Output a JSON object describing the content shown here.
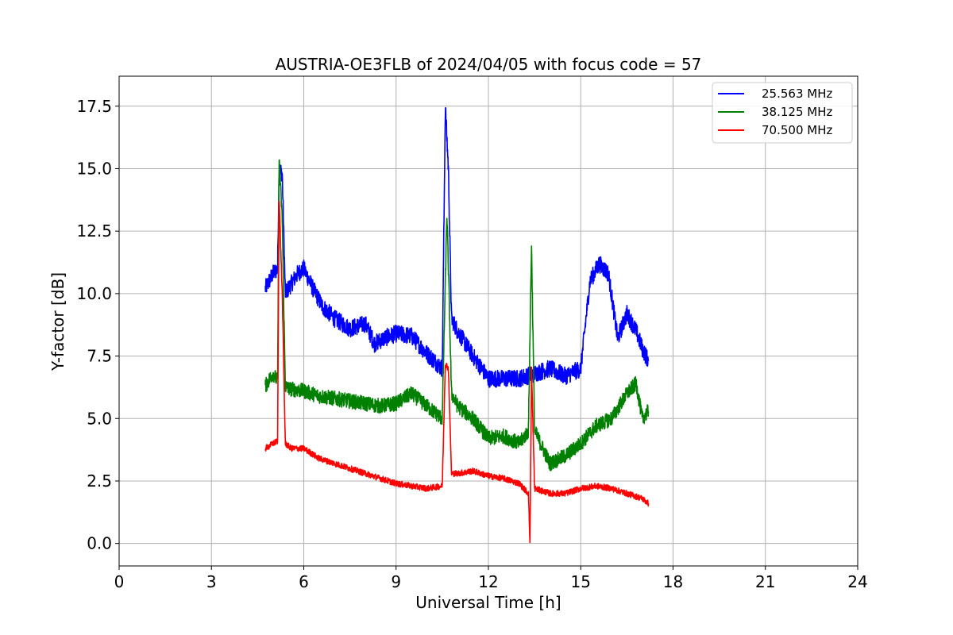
{
  "chart_data": {
    "type": "line",
    "title": "AUSTRIA-OE3FLB of 2024/04/05 with focus code = 57",
    "xlabel": "Universal Time [h]",
    "ylabel": "Y-factor [dB]",
    "xlim": [
      0,
      24
    ],
    "ylim": [
      -0.9,
      18.7
    ],
    "xticks": [
      0,
      3,
      6,
      9,
      12,
      15,
      18,
      21,
      24
    ],
    "xtick_labels": [
      "0",
      "3",
      "6",
      "9",
      "12",
      "15",
      "18",
      "21",
      "24"
    ],
    "yticks": [
      0,
      2.5,
      5,
      7.5,
      10,
      12.5,
      15,
      17.5
    ],
    "ytick_labels": [
      "0.0",
      "2.5",
      "5.0",
      "7.5",
      "10.0",
      "12.5",
      "15.0",
      "17.5"
    ],
    "grid": true,
    "legend_position": "top-right",
    "series": [
      {
        "name": "25.563 MHz",
        "color": "#0000ff",
        "noise": 0.35,
        "x": [
          4.75,
          5.0,
          5.15,
          5.2,
          5.3,
          5.4,
          5.5,
          5.8,
          6.0,
          6.3,
          6.6,
          7.0,
          7.5,
          8.0,
          8.3,
          8.6,
          9.0,
          9.5,
          10.0,
          10.5,
          10.6,
          10.7,
          10.8,
          11.0,
          11.5,
          12.0,
          12.5,
          13.0,
          13.5,
          14.0,
          14.5,
          15.0,
          15.3,
          15.6,
          15.9,
          16.2,
          16.5,
          16.8,
          17.0,
          17.2
        ],
        "y": [
          10.2,
          10.8,
          11.0,
          15.0,
          14.8,
          10.0,
          10.2,
          10.8,
          11.0,
          10.2,
          9.5,
          9.0,
          8.6,
          8.8,
          8.0,
          8.2,
          8.4,
          8.3,
          7.6,
          7.0,
          17.5,
          15.0,
          9.0,
          8.5,
          7.5,
          6.6,
          6.6,
          6.6,
          6.8,
          7.0,
          6.7,
          7.0,
          10.5,
          11.2,
          10.8,
          8.2,
          9.2,
          8.5,
          7.8,
          7.3
        ]
      },
      {
        "name": "38.125 MHz",
        "color": "#008000",
        "noise": 0.3,
        "x": [
          4.75,
          5.0,
          5.15,
          5.2,
          5.3,
          5.4,
          5.5,
          6.0,
          6.5,
          7.0,
          7.5,
          8.0,
          8.5,
          9.0,
          9.5,
          10.0,
          10.5,
          10.65,
          10.7,
          10.8,
          11.0,
          11.5,
          12.0,
          12.5,
          13.0,
          13.3,
          13.4,
          13.5,
          14.0,
          14.5,
          15.0,
          15.5,
          16.0,
          16.5,
          16.8,
          17.0,
          17.2
        ],
        "y": [
          6.3,
          6.8,
          6.5,
          15.3,
          13.0,
          6.3,
          6.2,
          6.1,
          5.9,
          5.8,
          5.7,
          5.6,
          5.5,
          5.6,
          6.0,
          5.5,
          5.0,
          13.2,
          11.0,
          6.0,
          5.5,
          5.0,
          4.2,
          4.3,
          4.0,
          4.5,
          12.0,
          4.5,
          3.2,
          3.5,
          4.0,
          4.7,
          5.0,
          6.0,
          6.4,
          5.0,
          5.3
        ]
      },
      {
        "name": "70.500 MHz",
        "color": "#ff0000",
        "noise": 0.12,
        "x": [
          4.75,
          5.0,
          5.15,
          5.2,
          5.3,
          5.4,
          5.6,
          6.0,
          6.5,
          7.0,
          7.5,
          8.0,
          8.5,
          9.0,
          9.5,
          10.0,
          10.5,
          10.6,
          10.7,
          10.8,
          11.0,
          11.5,
          12.0,
          12.5,
          13.0,
          13.3,
          13.35,
          13.4,
          13.5,
          14.0,
          14.5,
          15.0,
          15.5,
          16.0,
          16.5,
          17.0,
          17.2
        ],
        "y": [
          3.8,
          4.0,
          4.1,
          13.8,
          10.0,
          4.0,
          3.8,
          3.8,
          3.4,
          3.2,
          3.0,
          2.8,
          2.6,
          2.4,
          2.3,
          2.2,
          2.3,
          7.2,
          7.0,
          2.8,
          2.8,
          2.9,
          2.7,
          2.6,
          2.4,
          2.0,
          0.0,
          7.0,
          2.2,
          2.0,
          2.0,
          2.2,
          2.3,
          2.2,
          2.0,
          1.8,
          1.6
        ]
      }
    ]
  }
}
